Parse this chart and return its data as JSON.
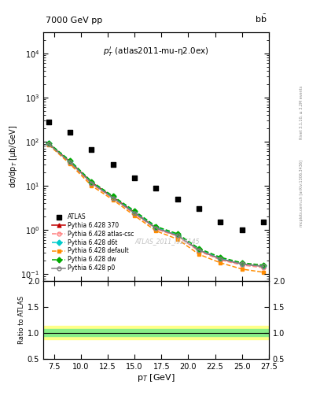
{
  "title_left": "7000 GeV pp",
  "title_right": "b$\\bar{b}$",
  "annotation": "$p^{l}_{T}$ (atlas2011-mu-η2.0ex)",
  "watermark": "ATLAS_2011_I926145",
  "right_label_top": "Rivet 3.1.10, ≥ 3.2M events",
  "right_label_bot": "mcplots.cern.ch [arXiv:1306.3436]",
  "ylabel_main": "dσ/dp$_{T}$ [μb/GeV]",
  "xlabel": "p$_{T}$ [GeV]",
  "ylabel_ratio": "Ratio to ATLAS",
  "xlim": [
    6.5,
    27.5
  ],
  "ylim_main_log": [
    0.07,
    30000
  ],
  "ylim_ratio": [
    0.5,
    2.0
  ],
  "atlas_x": [
    7,
    9,
    11,
    13,
    15,
    17,
    19,
    21,
    23,
    25,
    27
  ],
  "atlas_y": [
    280,
    160,
    65,
    30,
    15,
    9,
    5,
    3,
    1.5,
    1.0,
    1.5
  ],
  "pythia_x": [
    7,
    9,
    11,
    13,
    15,
    17,
    19,
    21,
    23,
    25,
    27
  ],
  "py370_y": [
    90,
    35,
    12,
    5.5,
    2.5,
    1.1,
    0.75,
    0.35,
    0.22,
    0.17,
    0.15
  ],
  "py_atlascsc_y": [
    88,
    33,
    11,
    5.2,
    2.3,
    1.05,
    0.72,
    0.33,
    0.21,
    0.16,
    0.14
  ],
  "py_d6t_y": [
    92,
    36,
    12,
    5.6,
    2.6,
    1.15,
    0.78,
    0.36,
    0.23,
    0.17,
    0.15
  ],
  "py_default_y": [
    85,
    31,
    10,
    4.8,
    2.1,
    0.95,
    0.62,
    0.28,
    0.18,
    0.13,
    0.11
  ],
  "py_dw_y": [
    93,
    37,
    12.5,
    5.8,
    2.7,
    1.2,
    0.82,
    0.38,
    0.24,
    0.18,
    0.16
  ],
  "py_p0_y": [
    88,
    34,
    11.5,
    5.3,
    2.4,
    1.1,
    0.75,
    0.35,
    0.22,
    0.17,
    0.15
  ],
  "color_370": "#c00000",
  "color_atlascsc": "#ff8080",
  "color_d6t": "#00cccc",
  "color_default": "#ff8c00",
  "color_dw": "#00aa00",
  "color_p0": "#808080",
  "ratio_green_lo": 0.93,
  "ratio_green_hi": 1.07,
  "ratio_yellow_lo": 0.87,
  "ratio_yellow_hi": 1.13
}
